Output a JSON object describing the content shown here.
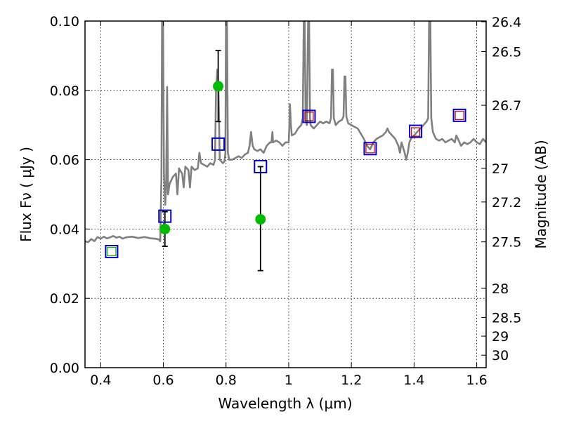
{
  "chart_data": {
    "type": "scatter",
    "xlabel": "Wavelength  λ (μm)",
    "ylabel": "Flux  Fν  ( μJy )",
    "ylabel_right": "Magnitude (AB)",
    "xlim": [
      0.35,
      1.63
    ],
    "ylim": [
      0.0,
      0.1
    ],
    "x_ticks": [
      0.4,
      0.6,
      0.8,
      1.0,
      1.2,
      1.4,
      1.6
    ],
    "x_tick_labels": [
      "0.4",
      "0.6",
      "0.8",
      "1",
      "1.2",
      "1.4",
      "1.6"
    ],
    "y_ticks": [
      0.0,
      0.02,
      0.04,
      0.06,
      0.08,
      0.1
    ],
    "y_tick_labels": [
      "0.00",
      "0.02",
      "0.04",
      "0.06",
      "0.08",
      "0.10"
    ],
    "right_ticks": [
      {
        "flux": 0.0998,
        "label": "26.4"
      },
      {
        "flux": 0.0912,
        "label": "26.5"
      },
      {
        "flux": 0.0757,
        "label": "26.7"
      },
      {
        "flux": 0.0575,
        "label": "27"
      },
      {
        "flux": 0.0478,
        "label": "27.2"
      },
      {
        "flux": 0.0363,
        "label": "27.5"
      },
      {
        "flux": 0.0229,
        "label": "28"
      },
      {
        "flux": 0.0145,
        "label": "28.5"
      },
      {
        "flux": 0.0091,
        "label": "29"
      },
      {
        "flux": 0.0036,
        "label": "30"
      }
    ],
    "grid": true,
    "series": [
      {
        "kind": "spectrum_line",
        "color": "#808080",
        "points": [
          [
            0.35,
            0.0365
          ],
          [
            0.36,
            0.0362
          ],
          [
            0.37,
            0.0371
          ],
          [
            0.38,
            0.0365
          ],
          [
            0.39,
            0.0377
          ],
          [
            0.4,
            0.0372
          ],
          [
            0.41,
            0.0378
          ],
          [
            0.42,
            0.0373
          ],
          [
            0.43,
            0.0376
          ],
          [
            0.44,
            0.038
          ],
          [
            0.45,
            0.0375
          ],
          [
            0.46,
            0.0378
          ],
          [
            0.47,
            0.0372
          ],
          [
            0.48,
            0.0376
          ],
          [
            0.5,
            0.0378
          ],
          [
            0.52,
            0.0374
          ],
          [
            0.54,
            0.0377
          ],
          [
            0.56,
            0.0373
          ],
          [
            0.575,
            0.0372
          ],
          [
            0.585,
            0.037
          ],
          [
            0.59,
            0.0365
          ],
          [
            0.594,
            0.055
          ],
          [
            0.596,
            0.1
          ],
          [
            0.599,
            0.1
          ],
          [
            0.602,
            0.056
          ],
          [
            0.606,
            0.047
          ],
          [
            0.609,
            0.052
          ],
          [
            0.612,
            0.081
          ],
          [
            0.615,
            0.05
          ],
          [
            0.62,
            0.053
          ],
          [
            0.63,
            0.055
          ],
          [
            0.64,
            0.056
          ],
          [
            0.645,
            0.05
          ],
          [
            0.65,
            0.0575
          ],
          [
            0.66,
            0.056
          ],
          [
            0.665,
            0.052
          ],
          [
            0.67,
            0.058
          ],
          [
            0.68,
            0.057
          ],
          [
            0.685,
            0.052
          ],
          [
            0.69,
            0.058
          ],
          [
            0.7,
            0.057
          ],
          [
            0.71,
            0.0575
          ],
          [
            0.715,
            0.062
          ],
          [
            0.72,
            0.059
          ],
          [
            0.73,
            0.0585
          ],
          [
            0.74,
            0.058
          ],
          [
            0.75,
            0.059
          ],
          [
            0.76,
            0.0585
          ],
          [
            0.765,
            0.06
          ],
          [
            0.768,
            0.08
          ],
          [
            0.772,
            0.086
          ],
          [
            0.776,
            0.08
          ],
          [
            0.78,
            0.06
          ],
          [
            0.79,
            0.059
          ],
          [
            0.795,
            0.0595
          ],
          [
            0.798,
            0.062
          ],
          [
            0.8,
            0.1
          ],
          [
            0.803,
            0.1
          ],
          [
            0.806,
            0.062
          ],
          [
            0.81,
            0.06
          ],
          [
            0.82,
            0.06
          ],
          [
            0.83,
            0.0605
          ],
          [
            0.84,
            0.061
          ],
          [
            0.85,
            0.0605
          ],
          [
            0.86,
            0.0615
          ],
          [
            0.87,
            0.062
          ],
          [
            0.875,
            0.064
          ],
          [
            0.88,
            0.068
          ],
          [
            0.885,
            0.064
          ],
          [
            0.89,
            0.063
          ],
          [
            0.9,
            0.0625
          ],
          [
            0.91,
            0.063
          ],
          [
            0.92,
            0.062
          ],
          [
            0.93,
            0.064
          ],
          [
            0.94,
            0.065
          ],
          [
            0.945,
            0.065
          ],
          [
            0.948,
            0.068
          ],
          [
            0.95,
            0.065
          ],
          [
            0.96,
            0.0655
          ],
          [
            0.97,
            0.065
          ],
          [
            0.98,
            0.064
          ],
          [
            0.99,
            0.065
          ],
          [
            1.0,
            0.065
          ],
          [
            1.002,
            0.07
          ],
          [
            1.004,
            0.076
          ],
          [
            1.007,
            0.07
          ],
          [
            1.01,
            0.067
          ],
          [
            1.02,
            0.0675
          ],
          [
            1.03,
            0.069
          ],
          [
            1.04,
            0.07
          ],
          [
            1.045,
            0.072
          ],
          [
            1.048,
            0.1
          ],
          [
            1.051,
            0.1
          ],
          [
            1.054,
            0.072
          ],
          [
            1.058,
            0.07
          ],
          [
            1.062,
            0.1
          ],
          [
            1.065,
            0.1
          ],
          [
            1.068,
            0.072
          ],
          [
            1.07,
            0.07
          ],
          [
            1.08,
            0.069
          ],
          [
            1.09,
            0.07
          ],
          [
            1.1,
            0.071
          ],
          [
            1.11,
            0.0705
          ],
          [
            1.12,
            0.071
          ],
          [
            1.13,
            0.0705
          ],
          [
            1.135,
            0.072
          ],
          [
            1.138,
            0.086
          ],
          [
            1.141,
            0.086
          ],
          [
            1.144,
            0.072
          ],
          [
            1.15,
            0.07
          ],
          [
            1.16,
            0.071
          ],
          [
            1.17,
            0.0715
          ],
          [
            1.175,
            0.0725
          ],
          [
            1.178,
            0.084
          ],
          [
            1.181,
            0.084
          ],
          [
            1.184,
            0.0725
          ],
          [
            1.19,
            0.0705
          ],
          [
            1.2,
            0.07
          ],
          [
            1.21,
            0.0695
          ],
          [
            1.22,
            0.069
          ],
          [
            1.23,
            0.0675
          ],
          [
            1.24,
            0.066
          ],
          [
            1.25,
            0.064
          ],
          [
            1.26,
            0.063
          ],
          [
            1.27,
            0.065
          ],
          [
            1.28,
            0.066
          ],
          [
            1.29,
            0.0665
          ],
          [
            1.3,
            0.067
          ],
          [
            1.31,
            0.068
          ],
          [
            1.315,
            0.069
          ],
          [
            1.32,
            0.068
          ],
          [
            1.33,
            0.067
          ],
          [
            1.34,
            0.066
          ],
          [
            1.35,
            0.064
          ],
          [
            1.355,
            0.062
          ],
          [
            1.36,
            0.065
          ],
          [
            1.37,
            0.062
          ],
          [
            1.375,
            0.06
          ],
          [
            1.38,
            0.062
          ],
          [
            1.385,
            0.065
          ],
          [
            1.39,
            0.066
          ],
          [
            1.4,
            0.067
          ],
          [
            1.41,
            0.068
          ],
          [
            1.42,
            0.069
          ],
          [
            1.43,
            0.07
          ],
          [
            1.44,
            0.071
          ],
          [
            1.445,
            0.072
          ],
          [
            1.448,
            0.1
          ],
          [
            1.452,
            0.1
          ],
          [
            1.455,
            0.072
          ],
          [
            1.46,
            0.068
          ],
          [
            1.47,
            0.066
          ],
          [
            1.48,
            0.0655
          ],
          [
            1.49,
            0.066
          ],
          [
            1.5,
            0.065
          ],
          [
            1.51,
            0.0655
          ],
          [
            1.52,
            0.066
          ],
          [
            1.53,
            0.065
          ],
          [
            1.535,
            0.067
          ],
          [
            1.54,
            0.066
          ],
          [
            1.545,
            0.065
          ],
          [
            1.55,
            0.064
          ],
          [
            1.56,
            0.065
          ],
          [
            1.57,
            0.0645
          ],
          [
            1.58,
            0.065
          ],
          [
            1.59,
            0.066
          ],
          [
            1.6,
            0.065
          ],
          [
            1.61,
            0.0645
          ],
          [
            1.62,
            0.066
          ],
          [
            1.63,
            0.065
          ]
        ]
      },
      {
        "kind": "observed_points",
        "marker": "circle",
        "color": "#00bb00",
        "points": [
          {
            "x": 0.605,
            "y": 0.04,
            "err_lo": 0.035,
            "err_hi": 0.045
          },
          {
            "x": 0.775,
            "y": 0.0812,
            "err_lo": 0.071,
            "err_hi": 0.0915
          },
          {
            "x": 0.91,
            "y": 0.0428,
            "err_lo": 0.028,
            "err_hi": 0.058
          }
        ]
      },
      {
        "kind": "model_squares",
        "marker": "square",
        "color": "#0000cc",
        "points": [
          {
            "x": 0.435,
            "y": 0.0335
          },
          {
            "x": 0.605,
            "y": 0.0437
          },
          {
            "x": 0.775,
            "y": 0.0645
          },
          {
            "x": 0.91,
            "y": 0.058
          },
          {
            "x": 1.065,
            "y": 0.0725
          },
          {
            "x": 1.26,
            "y": 0.0632
          },
          {
            "x": 1.405,
            "y": 0.0682
          },
          {
            "x": 1.545,
            "y": 0.0728
          }
        ]
      },
      {
        "kind": "measured_squares",
        "marker": "square-small",
        "points": [
          {
            "x": 0.435,
            "y": 0.0335,
            "color": "#00bb00"
          },
          {
            "x": 1.065,
            "y": 0.0725,
            "color": "#cc0000"
          },
          {
            "x": 1.26,
            "y": 0.0632,
            "color": "#cc0000"
          },
          {
            "x": 1.405,
            "y": 0.068,
            "color": "#cc0000"
          },
          {
            "x": 1.545,
            "y": 0.0728,
            "color": "#cc0000"
          }
        ]
      }
    ]
  }
}
